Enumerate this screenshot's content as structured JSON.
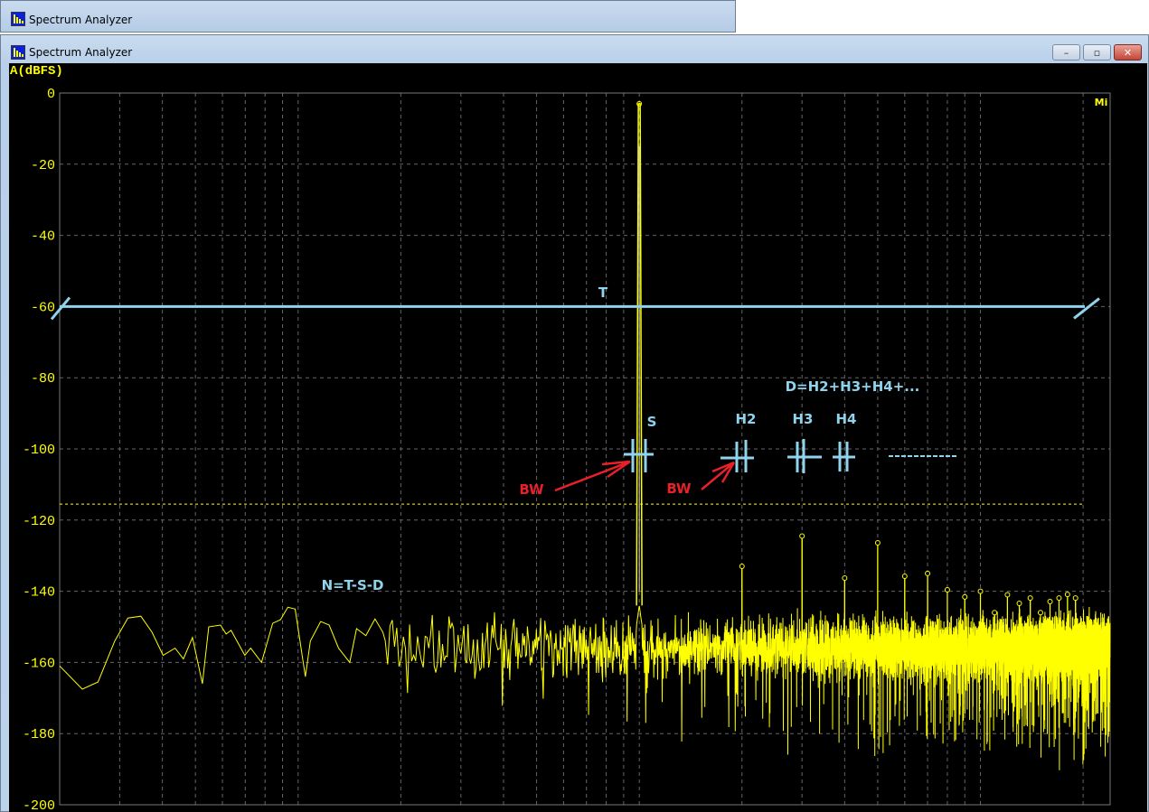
{
  "windows": [
    {
      "title": "Spectrum Analyzer"
    },
    {
      "title": "Spectrum Analyzer"
    }
  ],
  "controls": {
    "minimize": "–",
    "maximize": "▫",
    "close": "✕"
  },
  "y_axis_label": "A(dBFS)",
  "corner_badge": "Mi",
  "annotations": {
    "total": "T",
    "signal": "S",
    "h2": "H2",
    "h3": "H3",
    "h4": "H4",
    "distortion": "D=H2+H3+H4+...",
    "noise": "N=T-S-D",
    "bw1": "BW",
    "bw2": "BW"
  },
  "colors": {
    "background": "#000000",
    "trace": "#ffff00",
    "grid": "#666666",
    "annotation": "#87cde8",
    "arrow": "#e8202a",
    "axis_text": "#ffff00"
  },
  "chart_data": {
    "type": "line",
    "xlabel": "",
    "ylabel": "A(dBFS)",
    "x_scale": "log",
    "xlim": [
      20,
      24000
    ],
    "ylim": [
      -200,
      0
    ],
    "yticks": [
      0,
      -20,
      -40,
      -60,
      -80,
      -100,
      -120,
      -140,
      -160,
      -180,
      -200
    ],
    "grid": true,
    "fundamental": {
      "freq": 1000,
      "db": -3
    },
    "harmonics": [
      {
        "freq": 2000,
        "db": -133
      },
      {
        "freq": 3000,
        "db": -124.5
      },
      {
        "freq": 4000,
        "db": -136.3
      },
      {
        "freq": 5000,
        "db": -126.4
      },
      {
        "freq": 6000,
        "db": -135.8
      },
      {
        "freq": 7000,
        "db": -135
      },
      {
        "freq": 8000,
        "db": -139.6
      },
      {
        "freq": 9000,
        "db": -141.6
      },
      {
        "freq": 10000,
        "db": -140
      },
      {
        "freq": 11000,
        "db": -146
      },
      {
        "freq": 12000,
        "db": -141
      },
      {
        "freq": 13000,
        "db": -143.4
      },
      {
        "freq": 14000,
        "db": -141.9
      },
      {
        "freq": 15000,
        "db": -146
      },
      {
        "freq": 16000,
        "db": -142.9
      },
      {
        "freq": 17000,
        "db": -141.9
      },
      {
        "freq": 18000,
        "db": -140.9
      },
      {
        "freq": 19000,
        "db": -141.9
      }
    ],
    "low_frequency_points": [
      [
        20,
        -161
      ],
      [
        23.3,
        -167.5
      ],
      [
        25.9,
        -165.5
      ],
      [
        29,
        -154
      ],
      [
        31.7,
        -147.5
      ],
      [
        34.6,
        -147
      ],
      [
        37.3,
        -151.5
      ],
      [
        40.2,
        -158
      ],
      [
        43.6,
        -156
      ],
      [
        46.1,
        -159
      ],
      [
        49,
        -153
      ],
      [
        52.4,
        -166
      ],
      [
        54.7,
        -150
      ],
      [
        59.2,
        -149.5
      ],
      [
        61.5,
        -152
      ],
      [
        63.6,
        -151
      ],
      [
        69.8,
        -158
      ],
      [
        72.6,
        -156
      ],
      [
        78.1,
        -160
      ],
      [
        84.2,
        -149
      ],
      [
        88.8,
        -148
      ],
      [
        93.3,
        -144.5
      ],
      [
        98,
        -145
      ],
      [
        105,
        -164
      ],
      [
        108.6,
        -154
      ],
      [
        116.4,
        -148.5
      ],
      [
        123.3,
        -149.5
      ],
      [
        131.4,
        -156
      ],
      [
        141.7,
        -160
      ],
      [
        148.3,
        -150.5
      ],
      [
        158,
        -152.5
      ],
      [
        168,
        -147.8
      ],
      [
        177.2,
        -151.5
      ]
    ],
    "noise_floor_db": -156,
    "threshold_db": -115.5,
    "total_level_db": -60
  }
}
